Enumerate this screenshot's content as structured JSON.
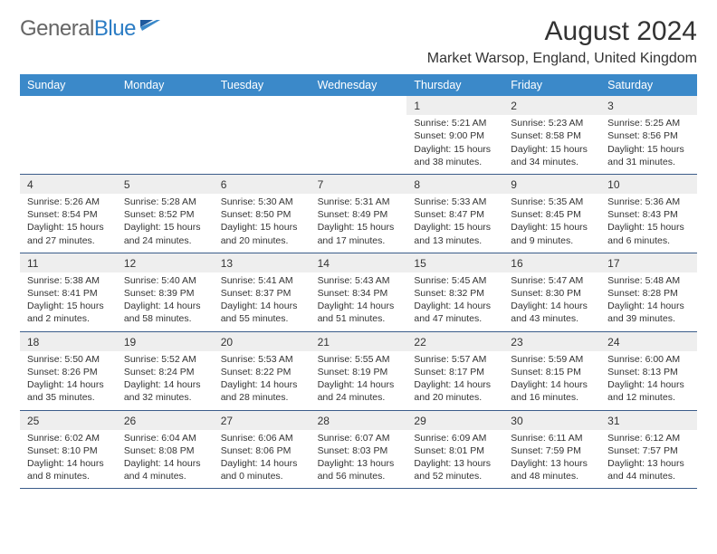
{
  "logo": {
    "text_main": "General",
    "text_accent": "Blue"
  },
  "title": "August 2024",
  "location": "Market Warsop, England, United Kingdom",
  "colors": {
    "header_bg": "#3b89c9",
    "header_text": "#ffffff",
    "daynum_bg": "#eeeeee",
    "border": "#3b5c8a",
    "logo_grey": "#666666",
    "logo_blue": "#2b7cc4"
  },
  "day_names": [
    "Sunday",
    "Monday",
    "Tuesday",
    "Wednesday",
    "Thursday",
    "Friday",
    "Saturday"
  ],
  "weeks": [
    [
      null,
      null,
      null,
      null,
      {
        "n": "1",
        "sr": "5:21 AM",
        "ss": "9:00 PM",
        "dl": "15 hours and 38 minutes."
      },
      {
        "n": "2",
        "sr": "5:23 AM",
        "ss": "8:58 PM",
        "dl": "15 hours and 34 minutes."
      },
      {
        "n": "3",
        "sr": "5:25 AM",
        "ss": "8:56 PM",
        "dl": "15 hours and 31 minutes."
      }
    ],
    [
      {
        "n": "4",
        "sr": "5:26 AM",
        "ss": "8:54 PM",
        "dl": "15 hours and 27 minutes."
      },
      {
        "n": "5",
        "sr": "5:28 AM",
        "ss": "8:52 PM",
        "dl": "15 hours and 24 minutes."
      },
      {
        "n": "6",
        "sr": "5:30 AM",
        "ss": "8:50 PM",
        "dl": "15 hours and 20 minutes."
      },
      {
        "n": "7",
        "sr": "5:31 AM",
        "ss": "8:49 PM",
        "dl": "15 hours and 17 minutes."
      },
      {
        "n": "8",
        "sr": "5:33 AM",
        "ss": "8:47 PM",
        "dl": "15 hours and 13 minutes."
      },
      {
        "n": "9",
        "sr": "5:35 AM",
        "ss": "8:45 PM",
        "dl": "15 hours and 9 minutes."
      },
      {
        "n": "10",
        "sr": "5:36 AM",
        "ss": "8:43 PM",
        "dl": "15 hours and 6 minutes."
      }
    ],
    [
      {
        "n": "11",
        "sr": "5:38 AM",
        "ss": "8:41 PM",
        "dl": "15 hours and 2 minutes."
      },
      {
        "n": "12",
        "sr": "5:40 AM",
        "ss": "8:39 PM",
        "dl": "14 hours and 58 minutes."
      },
      {
        "n": "13",
        "sr": "5:41 AM",
        "ss": "8:37 PM",
        "dl": "14 hours and 55 minutes."
      },
      {
        "n": "14",
        "sr": "5:43 AM",
        "ss": "8:34 PM",
        "dl": "14 hours and 51 minutes."
      },
      {
        "n": "15",
        "sr": "5:45 AM",
        "ss": "8:32 PM",
        "dl": "14 hours and 47 minutes."
      },
      {
        "n": "16",
        "sr": "5:47 AM",
        "ss": "8:30 PM",
        "dl": "14 hours and 43 minutes."
      },
      {
        "n": "17",
        "sr": "5:48 AM",
        "ss": "8:28 PM",
        "dl": "14 hours and 39 minutes."
      }
    ],
    [
      {
        "n": "18",
        "sr": "5:50 AM",
        "ss": "8:26 PM",
        "dl": "14 hours and 35 minutes."
      },
      {
        "n": "19",
        "sr": "5:52 AM",
        "ss": "8:24 PM",
        "dl": "14 hours and 32 minutes."
      },
      {
        "n": "20",
        "sr": "5:53 AM",
        "ss": "8:22 PM",
        "dl": "14 hours and 28 minutes."
      },
      {
        "n": "21",
        "sr": "5:55 AM",
        "ss": "8:19 PM",
        "dl": "14 hours and 24 minutes."
      },
      {
        "n": "22",
        "sr": "5:57 AM",
        "ss": "8:17 PM",
        "dl": "14 hours and 20 minutes."
      },
      {
        "n": "23",
        "sr": "5:59 AM",
        "ss": "8:15 PM",
        "dl": "14 hours and 16 minutes."
      },
      {
        "n": "24",
        "sr": "6:00 AM",
        "ss": "8:13 PM",
        "dl": "14 hours and 12 minutes."
      }
    ],
    [
      {
        "n": "25",
        "sr": "6:02 AM",
        "ss": "8:10 PM",
        "dl": "14 hours and 8 minutes."
      },
      {
        "n": "26",
        "sr": "6:04 AM",
        "ss": "8:08 PM",
        "dl": "14 hours and 4 minutes."
      },
      {
        "n": "27",
        "sr": "6:06 AM",
        "ss": "8:06 PM",
        "dl": "14 hours and 0 minutes."
      },
      {
        "n": "28",
        "sr": "6:07 AM",
        "ss": "8:03 PM",
        "dl": "13 hours and 56 minutes."
      },
      {
        "n": "29",
        "sr": "6:09 AM",
        "ss": "8:01 PM",
        "dl": "13 hours and 52 minutes."
      },
      {
        "n": "30",
        "sr": "6:11 AM",
        "ss": "7:59 PM",
        "dl": "13 hours and 48 minutes."
      },
      {
        "n": "31",
        "sr": "6:12 AM",
        "ss": "7:57 PM",
        "dl": "13 hours and 44 minutes."
      }
    ]
  ]
}
